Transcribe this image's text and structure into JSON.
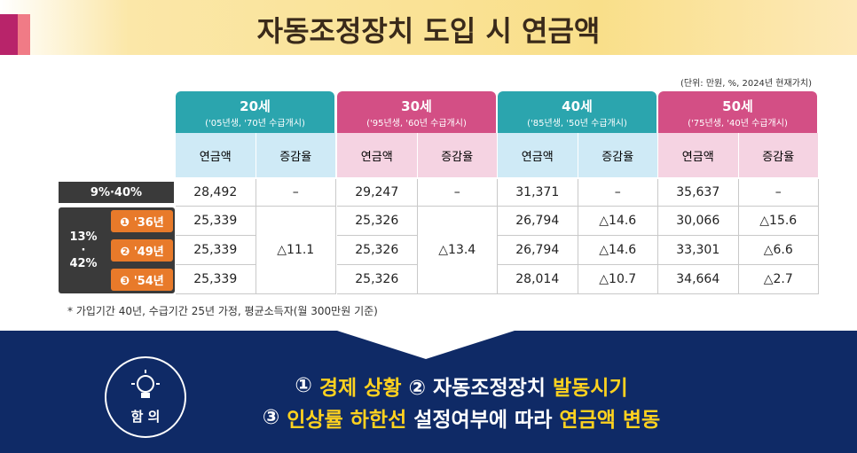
{
  "header": {
    "title": "자동조정장치 도입 시 연금액"
  },
  "unit_note": "(단위: 만원, %, 2024년 현재가치)",
  "table": {
    "groups": [
      {
        "age": "20세",
        "sub": "('05년생, '70년 수급개시)",
        "color": "#2ba5ae",
        "light": "#cfeaf6"
      },
      {
        "age": "30세",
        "sub": "('95년생, '60년 수급개시)",
        "color": "#d34f85",
        "light": "#f5d3e2"
      },
      {
        "age": "40세",
        "sub": "('85년생, '50년 수급개시)",
        "color": "#2ba5ae",
        "light": "#cfeaf6"
      },
      {
        "age": "50세",
        "sub": "('75년생, '40년 수급개시)",
        "color": "#d34f85",
        "light": "#f5d3e2"
      }
    ],
    "subheaders": [
      "연금액",
      "증감율"
    ],
    "base_row": {
      "label": "9%·40%",
      "cells": [
        "28,492",
        "–",
        "29,247",
        "–",
        "31,371",
        "–",
        "35,637",
        "–"
      ]
    },
    "scenario_label": [
      "13%",
      "·",
      "42%"
    ],
    "scenario_rows": [
      {
        "label": "❶ '36년",
        "cells": [
          "25,339",
          "△11.1",
          "25,326",
          "△13.4",
          "26,794",
          "△14.6",
          "30,066",
          "△15.6"
        ]
      },
      {
        "label": "❷ '49년",
        "cells": [
          "25,339",
          "25,326",
          "26,794",
          "△14.6",
          "33,301",
          "△6.6"
        ]
      },
      {
        "label": "❸ '54년",
        "cells": [
          "25,339",
          "25,326",
          "28,014",
          "△10.7",
          "34,664",
          "△2.7"
        ]
      }
    ]
  },
  "footnote": "* 가입기간 40년, 수급기간 25년 가정, 평균소득자(월 300만원 기준)",
  "implication": {
    "icon_label": "함 의",
    "lines": [
      [
        {
          "text": "① ",
          "highlight": false
        },
        {
          "text": "경제 상황",
          "highlight": true
        },
        {
          "text": " ② 자동조정장치 ",
          "highlight": false
        },
        {
          "text": "발동시기",
          "highlight": true
        }
      ],
      [
        {
          "text": "③ ",
          "highlight": false
        },
        {
          "text": "인상률 하한선",
          "highlight": true
        },
        {
          "text": " 설정여부에 따라 ",
          "highlight": false
        },
        {
          "text": "연금액 변동",
          "highlight": true
        }
      ]
    ]
  }
}
